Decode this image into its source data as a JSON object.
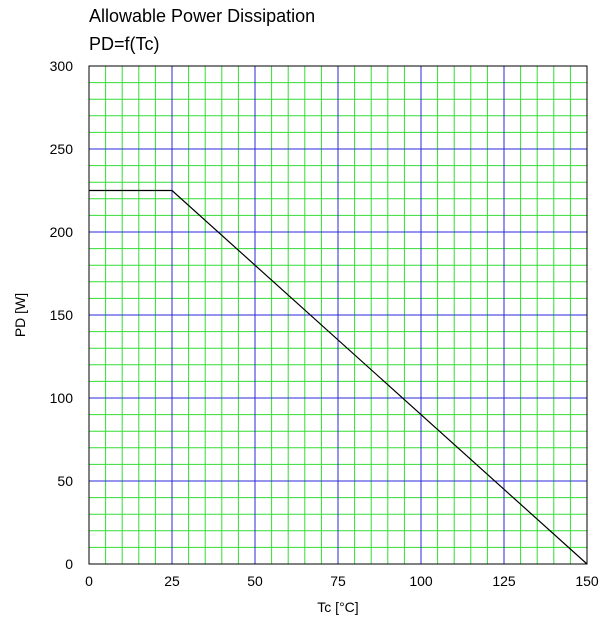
{
  "chart_data": {
    "type": "line",
    "title": "Allowable Power Dissipation",
    "subtitle": "PD=f(Tc)",
    "xlabel": "Tc [°C]",
    "ylabel": "PD [W]",
    "xlim": [
      0,
      150
    ],
    "ylim": [
      0,
      300
    ],
    "xticks": [
      "0",
      "25",
      "50",
      "75",
      "100",
      "125",
      "150"
    ],
    "yticks": [
      "0",
      "50",
      "100",
      "150",
      "200",
      "250",
      "300"
    ],
    "grid": true,
    "colors": {
      "minor_grid": "#33dd33",
      "major_grid": "#2a2ad8",
      "line": "#000000"
    },
    "series": [
      {
        "x": [
          0,
          25,
          150
        ],
        "y": [
          225,
          225,
          0
        ]
      }
    ]
  }
}
